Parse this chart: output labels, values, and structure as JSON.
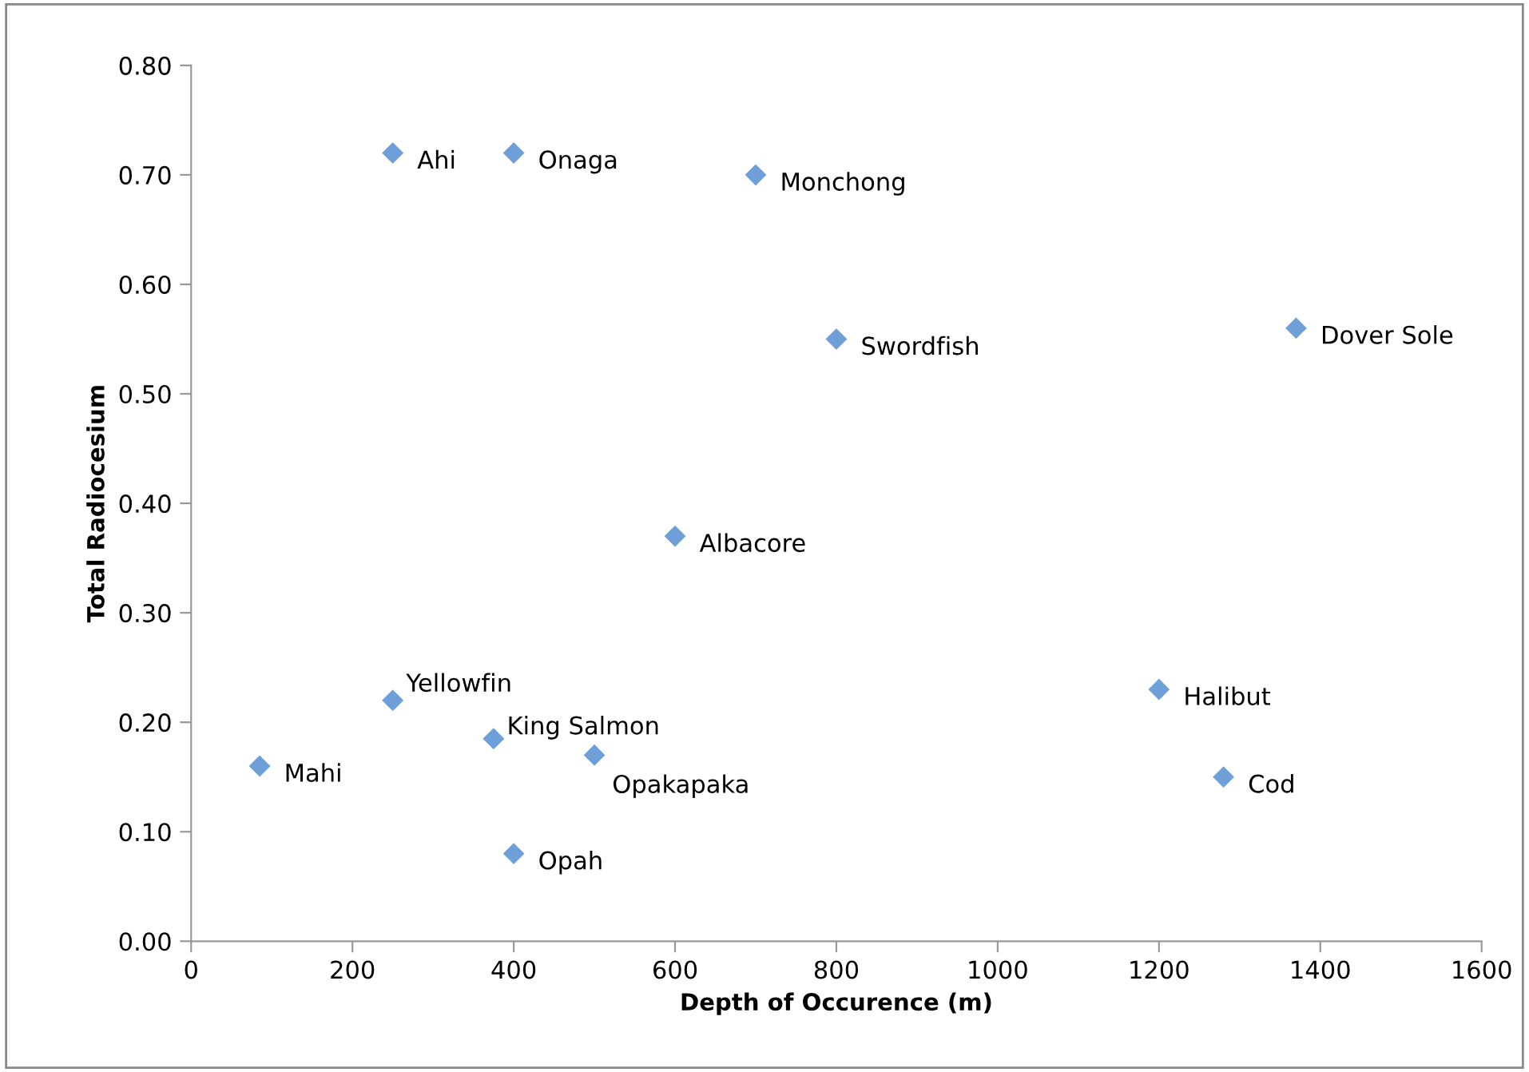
{
  "chart_data": {
    "type": "scatter",
    "xlabel": "Depth of Occurence (m)",
    "ylabel": "Total Radiocesium",
    "x": [
      250,
      400,
      700,
      800,
      1370,
      600,
      250,
      375,
      85,
      500,
      400,
      1200,
      1280
    ],
    "series": [
      {
        "color": "#6f9fd8",
        "values": [
          0.72,
          0.72,
          0.7,
          0.55,
          0.56,
          0.37,
          0.22,
          0.185,
          0.16,
          0.17,
          0.08,
          0.23,
          0.15
        ]
      }
    ],
    "annotations": [
      {
        "text": "Ahi",
        "x": 250,
        "y": 0.72
      },
      {
        "text": "Onaga",
        "x": 400,
        "y": 0.72
      },
      {
        "text": "Monchong",
        "x": 700,
        "y": 0.7
      },
      {
        "text": "Swordfish",
        "x": 800,
        "y": 0.55
      },
      {
        "text": "Dover Sole",
        "x": 1370,
        "y": 0.56
      },
      {
        "text": "Albacore",
        "x": 600,
        "y": 0.37
      },
      {
        "text": "Yellowfin",
        "x": 250,
        "y": 0.22
      },
      {
        "text": "King Salmon",
        "x": 375,
        "y": 0.185
      },
      {
        "text": "Mahi",
        "x": 85,
        "y": 0.16
      },
      {
        "text": "Opakapaka",
        "x": 500,
        "y": 0.17
      },
      {
        "text": "Opah",
        "x": 400,
        "y": 0.08
      },
      {
        "text": "Halibut",
        "x": 1200,
        "y": 0.23
      },
      {
        "text": "Cod",
        "x": 1280,
        "y": 0.15
      }
    ],
    "xlim": [
      0,
      1600
    ],
    "xticks": [
      0,
      200,
      400,
      600,
      800,
      1000,
      1200,
      1400,
      1600
    ],
    "ylim": [
      0,
      0.8
    ],
    "yticks": [
      {
        "value": 0,
        "label": "0.00"
      },
      {
        "value": 0.1,
        "label": "0.10"
      },
      {
        "value": 0.2,
        "label": "0.20"
      },
      {
        "value": 0.3,
        "label": "0.30"
      },
      {
        "value": 0.4,
        "label": "0.40"
      },
      {
        "value": 0.5,
        "label": "0.50"
      },
      {
        "value": 0.6,
        "label": "0.60"
      },
      {
        "value": 0.7,
        "label": "0.70"
      },
      {
        "value": 0.8,
        "label": "0.80"
      }
    ],
    "marker": "diamond",
    "grid": false,
    "legend": false
  }
}
